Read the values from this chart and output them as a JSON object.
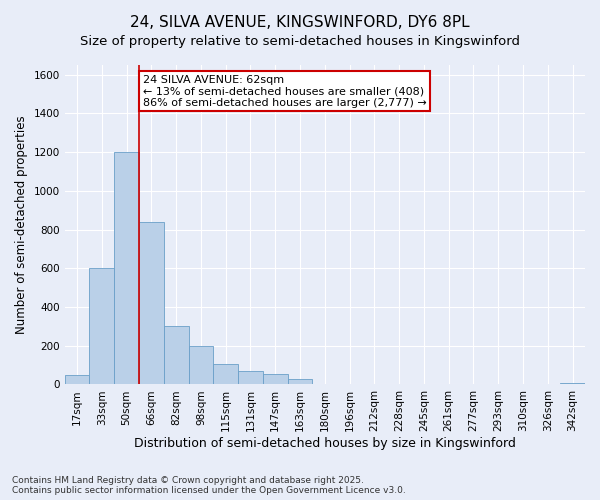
{
  "title_line1": "24, SILVA AVENUE, KINGSWINFORD, DY6 8PL",
  "title_line2": "Size of property relative to semi-detached houses in Kingswinford",
  "xlabel": "Distribution of semi-detached houses by size in Kingswinford",
  "ylabel": "Number of semi-detached properties",
  "footer": "Contains HM Land Registry data © Crown copyright and database right 2025.\nContains public sector information licensed under the Open Government Licence v3.0.",
  "bar_labels": [
    "17sqm",
    "33sqm",
    "50sqm",
    "66sqm",
    "82sqm",
    "98sqm",
    "115sqm",
    "131sqm",
    "147sqm",
    "163sqm",
    "180sqm",
    "196sqm",
    "212sqm",
    "228sqm",
    "245sqm",
    "261sqm",
    "277sqm",
    "293sqm",
    "310sqm",
    "326sqm",
    "342sqm"
  ],
  "bar_values": [
    50,
    600,
    1200,
    840,
    300,
    200,
    105,
    70,
    55,
    30,
    0,
    0,
    0,
    0,
    0,
    0,
    0,
    0,
    0,
    0,
    5
  ],
  "bar_color": "#bad0e8",
  "bar_edge_color": "#6a9fc8",
  "background_color": "#e8edf8",
  "grid_color": "#ffffff",
  "property_line_x": 2.5,
  "annotation_text": "24 SILVA AVENUE: 62sqm\n← 13% of semi-detached houses are smaller (408)\n86% of semi-detached houses are larger (2,777) →",
  "annotation_box_facecolor": "#ffffff",
  "annotation_box_edge": "#cc0000",
  "vline_color": "#cc0000",
  "ylim": [
    0,
    1650
  ],
  "yticks": [
    0,
    200,
    400,
    600,
    800,
    1000,
    1200,
    1400,
    1600
  ],
  "title_fontsize": 11,
  "subtitle_fontsize": 9.5,
  "axis_label_fontsize": 9,
  "tick_fontsize": 7.5,
  "annotation_fontsize": 8,
  "ylabel_fontsize": 8.5
}
